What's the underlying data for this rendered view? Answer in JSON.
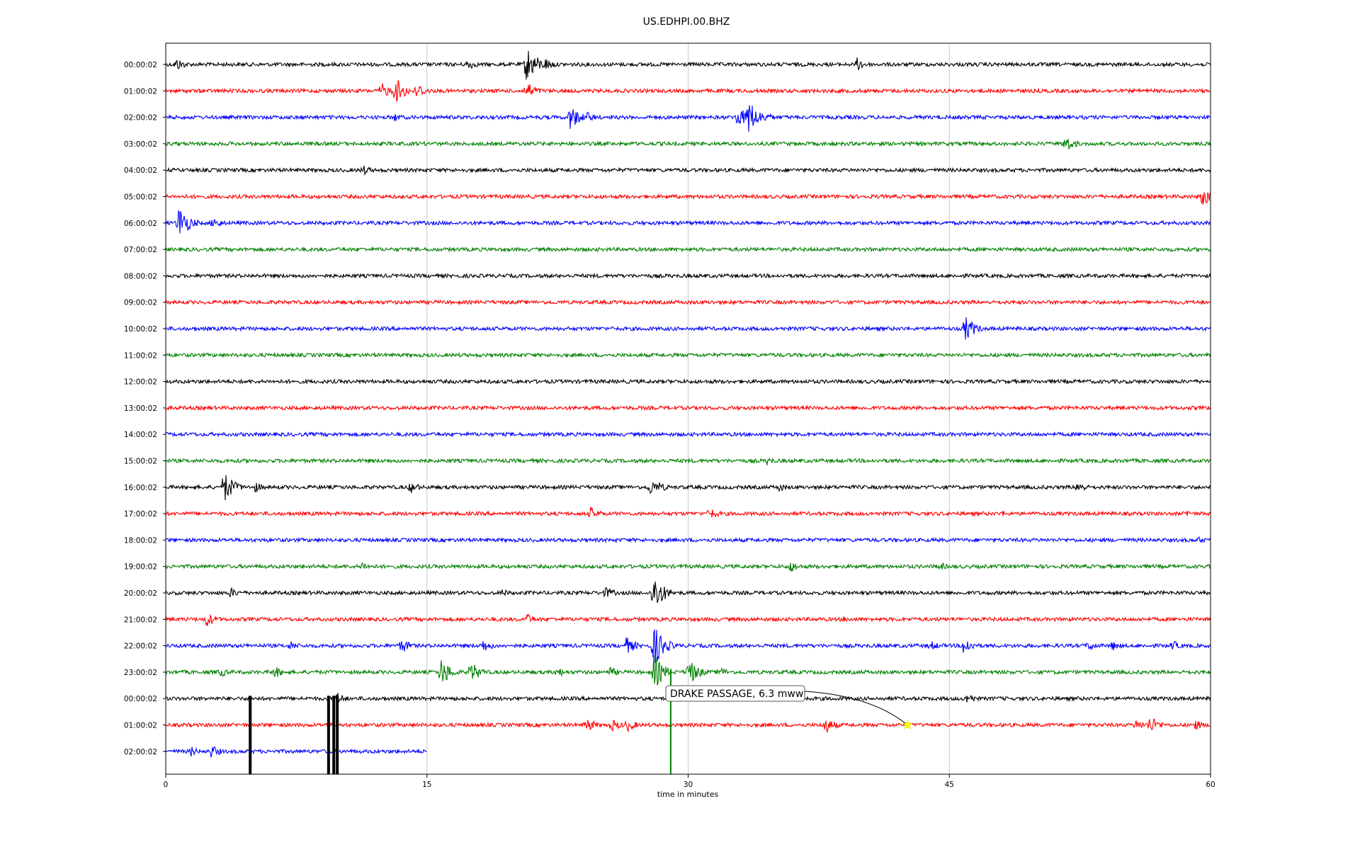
{
  "chart_data": {
    "type": "line",
    "title": "US.EDHPI.00.BHZ",
    "xlabel": "time in minutes",
    "ylabel": "",
    "xlim": [
      0,
      60
    ],
    "xticks": [
      0,
      15,
      30,
      45,
      60
    ],
    "vertical_grid": true,
    "trace_colors": [
      "#000000",
      "#ff0000",
      "#0000ff",
      "#008000"
    ],
    "rows": [
      {
        "label": "00:00:02",
        "end_minute": 60,
        "events": [
          {
            "t": 0.6,
            "a": 10
          },
          {
            "t": 17.3,
            "a": 9
          },
          {
            "t": 20.7,
            "a": 28
          },
          {
            "t": 21.1,
            "a": 16
          },
          {
            "t": 21.8,
            "a": 10
          },
          {
            "t": 39.7,
            "a": 10
          }
        ]
      },
      {
        "label": "01:00:02",
        "end_minute": 60,
        "events": [
          {
            "t": 12.4,
            "a": 12
          },
          {
            "t": 13.2,
            "a": 20
          },
          {
            "t": 14.4,
            "a": 12
          },
          {
            "t": 20.7,
            "a": 14
          }
        ]
      },
      {
        "label": "02:00:02",
        "end_minute": 60,
        "events": [
          {
            "t": 13.1,
            "a": 7
          },
          {
            "t": 23.2,
            "a": 20
          },
          {
            "t": 24.2,
            "a": 8
          },
          {
            "t": 32.8,
            "a": 18
          },
          {
            "t": 33.4,
            "a": 30
          },
          {
            "t": 34.4,
            "a": 8
          }
        ]
      },
      {
        "label": "03:00:02",
        "end_minute": 60,
        "events": [
          {
            "t": 51.6,
            "a": 14
          }
        ]
      },
      {
        "label": "04:00:02",
        "end_minute": 60,
        "events": [
          {
            "t": 11.3,
            "a": 8
          }
        ]
      },
      {
        "label": "05:00:02",
        "end_minute": 60,
        "events": [
          {
            "t": 59.5,
            "a": 16
          }
        ]
      },
      {
        "label": "06:00:02",
        "end_minute": 60,
        "events": [
          {
            "t": 0.7,
            "a": 28
          },
          {
            "t": 1.2,
            "a": 12
          },
          {
            "t": 2.7,
            "a": 10
          }
        ]
      },
      {
        "label": "07:00:02",
        "end_minute": 60,
        "events": []
      },
      {
        "label": "08:00:02",
        "end_minute": 60,
        "events": []
      },
      {
        "label": "09:00:02",
        "end_minute": 60,
        "events": []
      },
      {
        "label": "10:00:02",
        "end_minute": 60,
        "events": [
          {
            "t": 45.9,
            "a": 20
          }
        ]
      },
      {
        "label": "11:00:02",
        "end_minute": 60,
        "events": []
      },
      {
        "label": "12:00:02",
        "end_minute": 60,
        "events": []
      },
      {
        "label": "13:00:02",
        "end_minute": 60,
        "events": []
      },
      {
        "label": "14:00:02",
        "end_minute": 60,
        "events": []
      },
      {
        "label": "15:00:02",
        "end_minute": 60,
        "events": [
          {
            "t": 34.5,
            "a": 7
          }
        ]
      },
      {
        "label": "16:00:02",
        "end_minute": 60,
        "events": [
          {
            "t": 3.3,
            "a": 26
          },
          {
            "t": 5.1,
            "a": 8
          },
          {
            "t": 14.0,
            "a": 10
          },
          {
            "t": 27.8,
            "a": 12
          },
          {
            "t": 28.3,
            "a": 8
          },
          {
            "t": 35.2,
            "a": 7
          },
          {
            "t": 52.3,
            "a": 10
          }
        ]
      },
      {
        "label": "17:00:02",
        "end_minute": 60,
        "events": [
          {
            "t": 24.4,
            "a": 10
          },
          {
            "t": 31.2,
            "a": 10
          },
          {
            "t": 48.0,
            "a": 5
          },
          {
            "t": 58.6,
            "a": 6
          }
        ]
      },
      {
        "label": "18:00:02",
        "end_minute": 60,
        "events": [
          {
            "t": 59.3,
            "a": 6
          }
        ]
      },
      {
        "label": "19:00:02",
        "end_minute": 60,
        "events": [
          {
            "t": 11.2,
            "a": 8
          },
          {
            "t": 35.8,
            "a": 10
          },
          {
            "t": 44.4,
            "a": 7
          }
        ]
      },
      {
        "label": "20:00:02",
        "end_minute": 60,
        "events": [
          {
            "t": 3.7,
            "a": 8
          },
          {
            "t": 19.3,
            "a": 6
          },
          {
            "t": 25.2,
            "a": 10
          },
          {
            "t": 28.0,
            "a": 30
          }
        ]
      },
      {
        "label": "21:00:02",
        "end_minute": 60,
        "events": [
          {
            "t": 2.3,
            "a": 12
          },
          {
            "t": 20.7,
            "a": 9
          },
          {
            "t": 38.9,
            "a": 5
          }
        ]
      },
      {
        "label": "22:00:02",
        "end_minute": 60,
        "events": [
          {
            "t": 7.1,
            "a": 8
          },
          {
            "t": 13.5,
            "a": 12
          },
          {
            "t": 18.2,
            "a": 10
          },
          {
            "t": 26.4,
            "a": 14
          },
          {
            "t": 28.0,
            "a": 34
          },
          {
            "t": 43.9,
            "a": 8
          },
          {
            "t": 45.8,
            "a": 14
          },
          {
            "t": 53.0,
            "a": 8
          },
          {
            "t": 54.3,
            "a": 8
          },
          {
            "t": 57.8,
            "a": 8
          }
        ]
      },
      {
        "label": "23:00:02",
        "end_minute": 60,
        "events": [
          {
            "t": 3.1,
            "a": 8
          },
          {
            "t": 6.2,
            "a": 10
          },
          {
            "t": 15.8,
            "a": 22
          },
          {
            "t": 17.5,
            "a": 16
          },
          {
            "t": 22.4,
            "a": 9
          },
          {
            "t": 25.5,
            "a": 8
          },
          {
            "t": 28.0,
            "a": 28
          },
          {
            "t": 30.0,
            "a": 22
          },
          {
            "t": 31.8,
            "a": 8
          }
        ]
      },
      {
        "label": "00:00:02",
        "end_minute": 60,
        "events": [
          {
            "t": 9.8,
            "a": 10
          },
          {
            "t": 46.0,
            "a": 9
          }
        ]
      },
      {
        "label": "01:00:02",
        "end_minute": 60,
        "events": [
          {
            "t": 24.1,
            "a": 12
          },
          {
            "t": 25.6,
            "a": 10
          },
          {
            "t": 26.5,
            "a": 10
          },
          {
            "t": 37.8,
            "a": 14
          },
          {
            "t": 55.7,
            "a": 9
          },
          {
            "t": 56.5,
            "a": 14
          },
          {
            "t": 59.1,
            "a": 8
          }
        ]
      },
      {
        "label": "02:00:02",
        "end_minute": 15,
        "events": [
          {
            "t": 1.4,
            "a": 8
          },
          {
            "t": 2.6,
            "a": 10
          }
        ]
      }
    ],
    "spikes": [
      {
        "t": 4.85,
        "color": "#000000",
        "from_row": 24,
        "to": "bottom"
      },
      {
        "t": 9.35,
        "color": "#000000",
        "from_row": 24,
        "to": "bottom"
      },
      {
        "t": 9.65,
        "color": "#000000",
        "from_row": 24,
        "to": "bottom"
      },
      {
        "t": 9.85,
        "color": "#000000",
        "from_row": 24,
        "to": "bottom"
      },
      {
        "t": 29.0,
        "color": "#008000",
        "from_row": 23,
        "to": "bottom"
      }
    ],
    "annotation": {
      "text": "DRAKE PASSAGE, 6.3 mww",
      "event_minute": 42.6,
      "event_row": 25,
      "marker": "star",
      "marker_color": "#ffff00"
    }
  }
}
